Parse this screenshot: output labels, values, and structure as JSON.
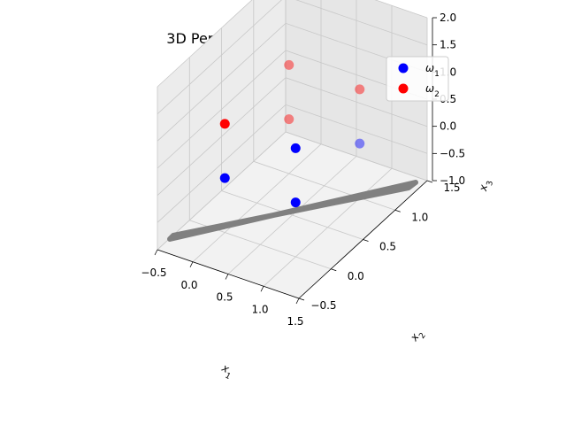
{
  "chart_data": {
    "type": "scatter",
    "title": "3D Perceptron Classification Result",
    "xlabel": "x1",
    "ylabel": "x2",
    "zlabel": "x3",
    "xlim": [
      -0.5,
      1.5
    ],
    "ylim": [
      -0.5,
      1.5
    ],
    "zlim": [
      -1.0,
      2.0
    ],
    "x_ticks": [
      "−0.5",
      "0.0",
      "0.5",
      "1.0",
      "1.5"
    ],
    "y_ticks": [
      "−0.5",
      "0.0",
      "0.5",
      "1.0",
      "1.5"
    ],
    "z_ticks": [
      "−1.0",
      "−0.5",
      "0.0",
      "0.5",
      "1.0",
      "1.5",
      "2.0"
    ],
    "grid": true,
    "legend_position": "top-right",
    "series": [
      {
        "name": "ω1",
        "color": "#0000ff",
        "points": [
          [
            0,
            0,
            0
          ],
          [
            1,
            0,
            0
          ],
          [
            1,
            0,
            1
          ],
          [
            1,
            1,
            0
          ]
        ]
      },
      {
        "name": "ω2",
        "color": "#ff0000",
        "points": [
          [
            0,
            0,
            1
          ],
          [
            0,
            1,
            1
          ],
          [
            0,
            1,
            0
          ],
          [
            1,
            1,
            1
          ]
        ]
      }
    ],
    "decision_plane_color": "#808080"
  }
}
